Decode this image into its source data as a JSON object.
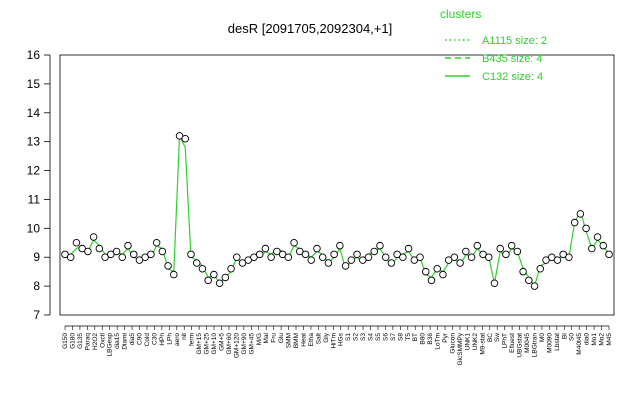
{
  "chart_data": {
    "type": "line",
    "title": "desR [2091705,2092304,+1]",
    "ylim": [
      7,
      16
    ],
    "yticks": [
      7,
      8,
      9,
      10,
      11,
      12,
      13,
      14,
      15,
      16
    ],
    "xticklabels": [
      "G150",
      "G180",
      "G135",
      "Paraq",
      "H2O2",
      "Oxctl",
      "LBGexp",
      "dia15",
      "Diami",
      "dia5",
      "C90",
      "Cold",
      "C30",
      "HPh",
      "LPh",
      "aero",
      "nit",
      "ferm",
      "GM+15",
      "GM+25",
      "GM+10",
      "GM+5",
      "GM+60",
      "GM+120",
      "GM+90",
      "GM+45",
      "M/G",
      "Mal",
      "Fru",
      "Glu",
      "SMM",
      "BMM",
      "Heat",
      "Etha",
      "Salt",
      "Gly",
      "HiTm",
      "HGs",
      "S1",
      "S2",
      "S3",
      "S4",
      "S5",
      "S6",
      "S7",
      "S8",
      "T5",
      "BT",
      "B80",
      "B36",
      "LoTm",
      "Pyr",
      "Glucon",
      "GlcSMMPy",
      "UNK1",
      "UNK2",
      "M9-stat",
      "BC",
      "Sw",
      "LPhT",
      "Efluest",
      "UBGstat",
      "M0045",
      "LBGtran",
      "M0",
      "M0090",
      "Lbstat",
      "BI",
      "S0",
      "M40t45",
      "dia0",
      "Mo1",
      "Mo2",
      "M45"
    ],
    "legend": {
      "title": "clusters",
      "entries": [
        {
          "label": "A1115 size: 2",
          "style": "dotted"
        },
        {
          "label": "B435 size: 4",
          "style": "dashed"
        },
        {
          "label": "C132 size: 4",
          "style": "solid"
        }
      ]
    },
    "x_count": 96,
    "series": [
      {
        "values": [
          9.0,
          9.1,
          9.3,
          9.4,
          9.2,
          9.6,
          9.4,
          9.1,
          9.0,
          9.2,
          9.1,
          9.3,
          9.0,
          8.9,
          9.1,
          9.0,
          9.4,
          9.3,
          8.6,
          8.5,
          13.2,
          12.8,
          9.0,
          8.9,
          8.7,
          8.3,
          8.4,
          8.1,
          8.3,
          8.5,
          9.0,
          8.7,
          8.9,
          9.1,
          9.0,
          9.2,
          9.1,
          9.3,
          9.2,
          9.0,
          9.4,
          9.3,
          9.1,
          9.0,
          9.2,
          9.1,
          8.8,
          9.0,
          9.3,
          8.6,
          8.9,
          9.0,
          8.8,
          9.1,
          9.2,
          9.3,
          9.0,
          8.7,
          9.0,
          9.1,
          9.2,
          8.9,
          9.0,
          8.4,
          8.3,
          8.6,
          8.5,
          8.8,
          9.0,
          8.7,
          9.1,
          9.0,
          9.3,
          9.1,
          9.0,
          8.1,
          9.2,
          9.0,
          9.3,
          9.2,
          8.6,
          8.3,
          8.0,
          8.7,
          8.8,
          9.0,
          8.9,
          9.1,
          9.0,
          10.2,
          10.6,
          9.9,
          9.3,
          9.6,
          9.4,
          9.1
        ],
        "points": [
          9.1,
          9.0,
          9.5,
          9.3,
          9.2,
          9.7,
          9.3,
          9.0,
          9.1,
          9.2,
          9.0,
          9.4,
          9.1,
          8.9,
          9.0,
          9.1,
          9.5,
          9.2,
          8.7,
          8.4,
          13.2,
          13.1,
          9.1,
          8.8,
          8.6,
          8.2,
          8.4,
          8.1,
          8.3,
          8.6,
          9.0,
          8.8,
          8.9,
          9.0,
          9.1,
          9.3,
          9.0,
          9.2,
          9.1,
          9.0,
          9.5,
          9.2,
          9.1,
          8.9,
          9.3,
          9.0,
          8.8,
          9.1,
          9.4,
          8.7,
          8.9,
          9.1,
          8.9,
          9.0,
          9.2,
          9.4,
          9.0,
          8.8,
          9.1,
          9.0,
          9.3,
          8.9,
          9.0,
          8.5,
          8.2,
          8.6,
          8.4,
          8.9,
          9.0,
          8.8,
          9.2,
          9.0,
          9.4,
          9.1,
          9.0,
          8.1,
          9.3,
          9.1,
          9.4,
          9.2,
          8.5,
          8.2,
          8.0,
          8.6,
          8.9,
          9.0,
          8.9,
          9.1,
          9.0,
          10.2,
          10.5,
          10.0,
          9.3,
          9.7,
          9.4,
          9.1
        ]
      }
    ]
  }
}
